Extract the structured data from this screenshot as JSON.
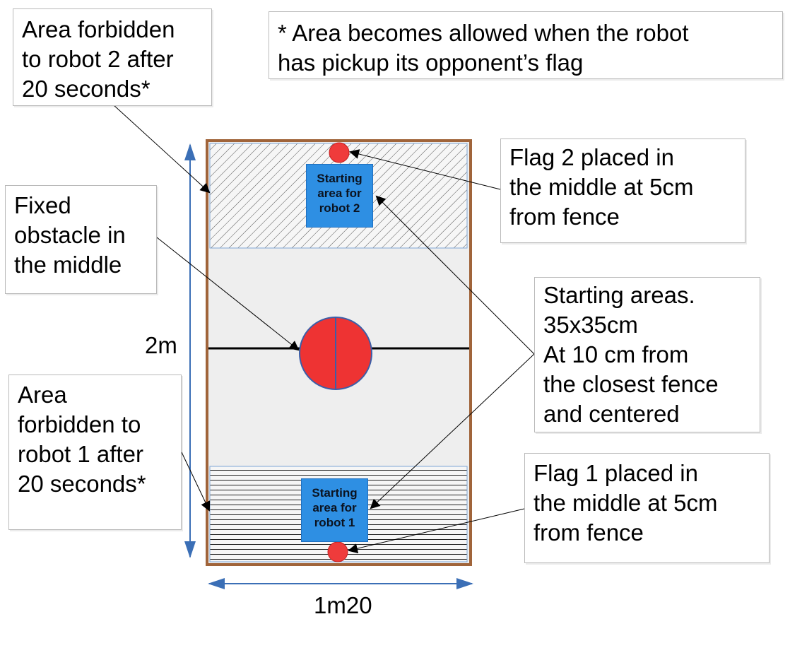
{
  "callouts": {
    "forbidden_robot2": "Area forbidden\nto robot 2 after\n20 seconds*",
    "note": "* Area becomes allowed when the robot\nhas pickup its opponent’s flag",
    "fixed_obstacle": "Fixed\nobstacle in\nthe middle",
    "flag2": "Flag 2 placed in\nthe middle at 5cm\nfrom fence",
    "starting_areas": "Starting areas.\n35x35cm\nAt 10 cm from\nthe closest fence\nand centered",
    "forbidden_robot1": "Area\nforbidden to\nrobot 1 after\n20 seconds*",
    "flag1": "Flag 1 placed in\nthe middle at 5cm\nfrom fence"
  },
  "field": {
    "start_robot2": "Starting\narea for\nrobot 2",
    "start_robot1": "Starting\narea for\nrobot 1"
  },
  "dimensions": {
    "height": "2m",
    "width": "1m20"
  },
  "colors": {
    "fence": "#a0643a",
    "field": "#eeeeee",
    "start_area": "#2e8fe3",
    "flag": "#ef3b3b",
    "obstacle": "#ee3333",
    "dimension_arrow": "#3b6fb6"
  }
}
